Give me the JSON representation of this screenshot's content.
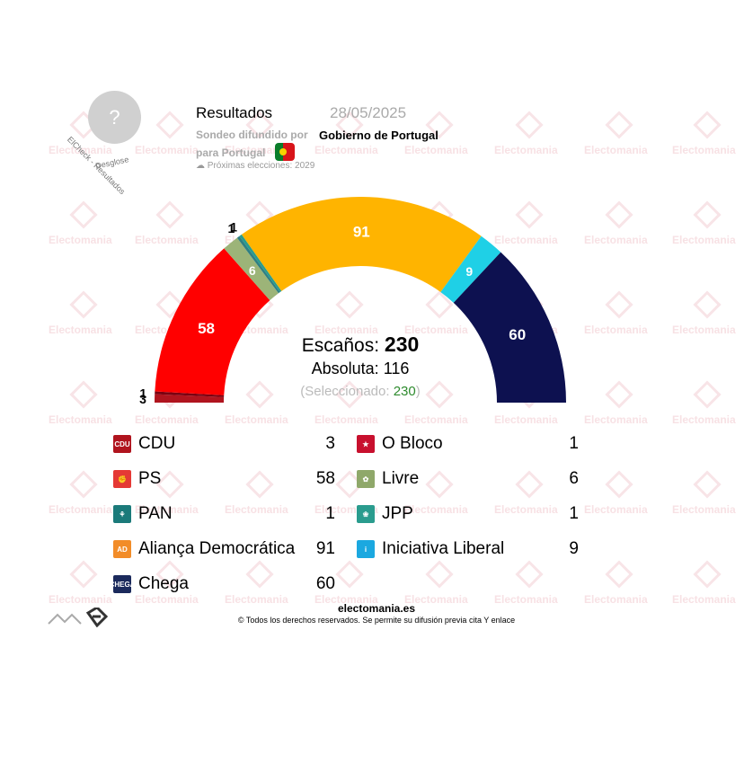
{
  "header": {
    "title": "Resultados",
    "date": "28/05/2025",
    "line1": "Sondeo difundido por",
    "pollster": "Gobierno de Portugal",
    "line2": "para Portugal",
    "next_elections": "Próximas elecciones: 2029",
    "avatar_symbol": "?",
    "badge_text": "ElCheck - Resultados",
    "desglose": "Desglose"
  },
  "watermark": "Electomania",
  "chart_data": {
    "type": "parliament_semicircle",
    "total_label": "Escaños:",
    "total": 230,
    "majority_label": "Absoluta:",
    "majority": 116,
    "selected_label": "(Seleccionado:",
    "selected_value": "230",
    "selected_close": ")",
    "parties": [
      {
        "name": "CDU",
        "seats": 3,
        "color": "#b0141e"
      },
      {
        "name": "O Bloco",
        "seats": 1,
        "color": "#7a0010"
      },
      {
        "name": "PS",
        "seats": 58,
        "color": "#ff0000"
      },
      {
        "name": "Livre",
        "seats": 6,
        "color": "#9cb478"
      },
      {
        "name": "PAN",
        "seats": 1,
        "color": "#2f7f82"
      },
      {
        "name": "JPP",
        "seats": 1,
        "color": "#2a9c8e"
      },
      {
        "name": "Aliança Democrática",
        "seats": 91,
        "color": "#ffb400"
      },
      {
        "name": "Iniciativa Liberal",
        "seats": 9,
        "color": "#1fd0e6"
      },
      {
        "name": "Chega",
        "seats": 60,
        "color": "#0d1150"
      }
    ]
  },
  "legend": {
    "left": [
      {
        "name": "CDU",
        "seats": "3",
        "icon": "cdu-logo",
        "color": "#b0141e",
        "abbr": "CDU"
      },
      {
        "name": "PS",
        "seats": "58",
        "icon": "ps-logo",
        "color": "#e53935",
        "abbr": "✊"
      },
      {
        "name": "PAN",
        "seats": "1",
        "icon": "pan-logo",
        "color": "#1b7a7a",
        "abbr": "⚘"
      },
      {
        "name": "Aliança Democrática",
        "seats": "91",
        "icon": "ad-logo",
        "color": "#f28c28",
        "abbr": "AD"
      },
      {
        "name": "Chega",
        "seats": "60",
        "icon": "chega-logo",
        "color": "#1b2a5c",
        "abbr": "CHEGA"
      }
    ],
    "right": [
      {
        "name": "O Bloco",
        "seats": "1",
        "icon": "bloco-logo",
        "color": "#c8102e",
        "abbr": "★"
      },
      {
        "name": "Livre",
        "seats": "6",
        "icon": "livre-logo",
        "color": "#8fa86a",
        "abbr": "✿"
      },
      {
        "name": "JPP",
        "seats": "1",
        "icon": "jpp-logo",
        "color": "#2a9c8e",
        "abbr": "❀"
      },
      {
        "name": "Iniciativa Liberal",
        "seats": "9",
        "icon": "il-logo",
        "color": "#1ba8e0",
        "abbr": "i"
      }
    ]
  },
  "footer": {
    "site": "electomania.es",
    "copyright": "© Todos los derechos reservados. Se permite su difusión previa cita Y enlace"
  }
}
